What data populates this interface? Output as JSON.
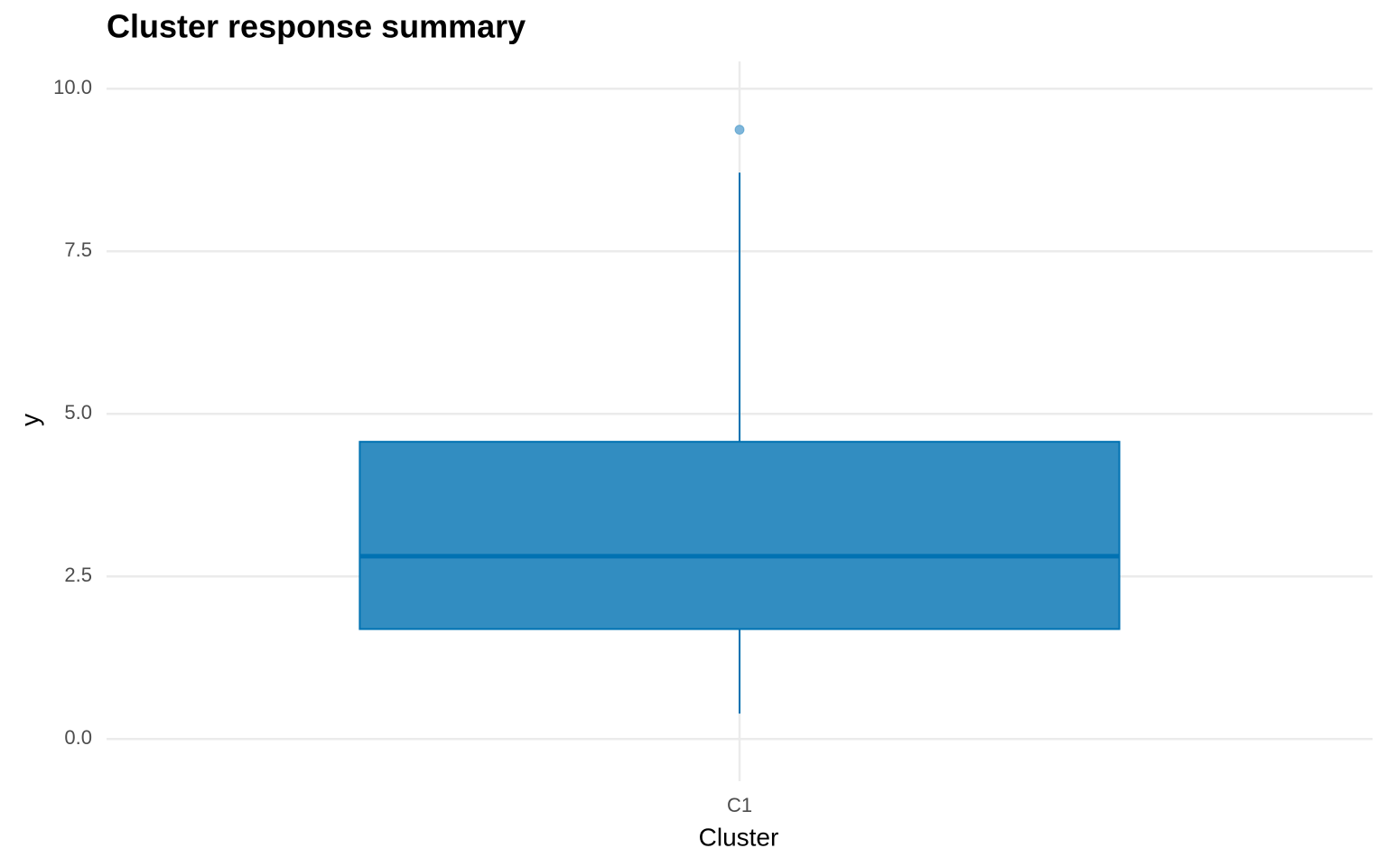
{
  "chart_data": {
    "type": "box",
    "title": "Cluster response summary",
    "x_label": "Cluster",
    "y_label": "y",
    "categories": [
      "C1"
    ],
    "boxes": [
      {
        "min": 0.39,
        "q1": 1.69,
        "median": 2.81,
        "q3": 4.57,
        "max": 8.71,
        "outliers": [
          9.37
        ]
      }
    ],
    "color": "#0072b2",
    "fill": "#2e8bc0",
    "outlier_color": "#7fb6db",
    "ylim": [
      -0.65,
      10.42
    ],
    "yticks": [
      {
        "value": 0,
        "label": "0.0"
      },
      2.5,
      {
        "value": 5,
        "label": "5.0"
      },
      7.5,
      {
        "value": 10,
        "label": "10.0"
      }
    ],
    "grid": true
  }
}
